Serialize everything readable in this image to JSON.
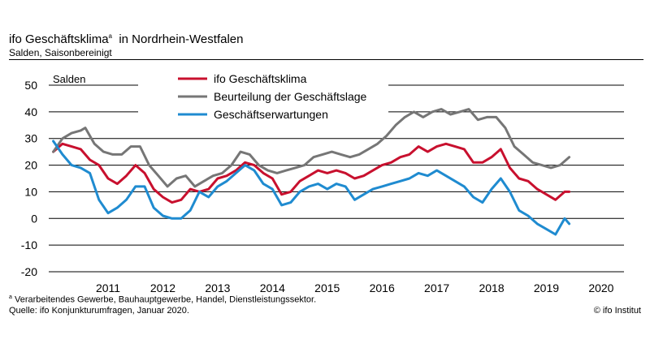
{
  "header": {
    "title": "ifo Geschäftsklima",
    "title_sup": "a",
    "title_suffix": "in Nordrhein-Westfalen",
    "subtitle": "Salden, Saisonbereinigt"
  },
  "footer": {
    "footnote_sup": "a",
    "footnote": "Verarbeitendes Gewerbe, Bauhauptgewerbe, Handel, Dienstleistungssektor.",
    "source": "Quelle: ifo Konjunkturumfragen, Januar 2020.",
    "copyright": "© ifo Institut"
  },
  "chart_data": {
    "type": "line",
    "ylabel": "Salden",
    "ylim": [
      -20,
      50
    ],
    "yticks": [
      -20,
      -10,
      0,
      10,
      20,
      30,
      40,
      50
    ],
    "xlim": [
      "2010-06",
      "2020-12"
    ],
    "xticks": [
      "2011",
      "2012",
      "2013",
      "2014",
      "2015",
      "2016",
      "2017",
      "2018",
      "2019",
      "2020"
    ],
    "grid": "horizontal",
    "legend_position": "top-center",
    "series": [
      {
        "name": "ifo Geschäftsklima",
        "color": "#c8102e",
        "points": [
          [
            "2010-07",
            25
          ],
          [
            "2010-09",
            28
          ],
          [
            "2010-11",
            27
          ],
          [
            "2011-01",
            26
          ],
          [
            "2011-03",
            22
          ],
          [
            "2011-05",
            20
          ],
          [
            "2011-07",
            15
          ],
          [
            "2011-09",
            13
          ],
          [
            "2011-11",
            16
          ],
          [
            "2012-01",
            20
          ],
          [
            "2012-03",
            17
          ],
          [
            "2012-05",
            11
          ],
          [
            "2012-07",
            8
          ],
          [
            "2012-09",
            6
          ],
          [
            "2012-11",
            7
          ],
          [
            "2013-01",
            11
          ],
          [
            "2013-03",
            10
          ],
          [
            "2013-05",
            11
          ],
          [
            "2013-07",
            15
          ],
          [
            "2013-09",
            16
          ],
          [
            "2013-11",
            18
          ],
          [
            "2014-01",
            21
          ],
          [
            "2014-03",
            20
          ],
          [
            "2014-05",
            17
          ],
          [
            "2014-07",
            15
          ],
          [
            "2014-09",
            9
          ],
          [
            "2014-11",
            10
          ],
          [
            "2015-01",
            14
          ],
          [
            "2015-03",
            16
          ],
          [
            "2015-05",
            18
          ],
          [
            "2015-07",
            17
          ],
          [
            "2015-09",
            18
          ],
          [
            "2015-11",
            17
          ],
          [
            "2016-01",
            15
          ],
          [
            "2016-03",
            16
          ],
          [
            "2016-05",
            18
          ],
          [
            "2016-07",
            20
          ],
          [
            "2016-09",
            21
          ],
          [
            "2016-11",
            23
          ],
          [
            "2017-01",
            24
          ],
          [
            "2017-03",
            27
          ],
          [
            "2017-05",
            25
          ],
          [
            "2017-07",
            27
          ],
          [
            "2017-09",
            28
          ],
          [
            "2017-11",
            27
          ],
          [
            "2018-01",
            26
          ],
          [
            "2018-03",
            21
          ],
          [
            "2018-05",
            21
          ],
          [
            "2018-07",
            23
          ],
          [
            "2018-09",
            26
          ],
          [
            "2018-11",
            19
          ],
          [
            "2019-01",
            15
          ],
          [
            "2019-03",
            14
          ],
          [
            "2019-05",
            11
          ],
          [
            "2019-07",
            9
          ],
          [
            "2019-09",
            7
          ],
          [
            "2019-11",
            10
          ],
          [
            "2019-12",
            10
          ]
        ]
      },
      {
        "name": "Beurteilung der Geschäftslage",
        "color": "#767676",
        "points": [
          [
            "2010-07",
            25
          ],
          [
            "2010-09",
            30
          ],
          [
            "2010-11",
            32
          ],
          [
            "2011-01",
            33
          ],
          [
            "2011-02",
            34
          ],
          [
            "2011-04",
            28
          ],
          [
            "2011-06",
            25
          ],
          [
            "2011-08",
            24
          ],
          [
            "2011-10",
            24
          ],
          [
            "2011-12",
            27
          ],
          [
            "2012-02",
            27
          ],
          [
            "2012-04",
            20
          ],
          [
            "2012-06",
            16
          ],
          [
            "2012-08",
            12
          ],
          [
            "2012-10",
            15
          ],
          [
            "2012-12",
            16
          ],
          [
            "2013-02",
            12
          ],
          [
            "2013-04",
            14
          ],
          [
            "2013-06",
            16
          ],
          [
            "2013-08",
            17
          ],
          [
            "2013-10",
            20
          ],
          [
            "2013-12",
            25
          ],
          [
            "2014-02",
            24
          ],
          [
            "2014-04",
            20
          ],
          [
            "2014-06",
            18
          ],
          [
            "2014-08",
            17
          ],
          [
            "2014-10",
            18
          ],
          [
            "2014-12",
            19
          ],
          [
            "2015-02",
            20
          ],
          [
            "2015-04",
            23
          ],
          [
            "2015-06",
            24
          ],
          [
            "2015-08",
            25
          ],
          [
            "2015-10",
            24
          ],
          [
            "2015-12",
            23
          ],
          [
            "2016-02",
            24
          ],
          [
            "2016-04",
            26
          ],
          [
            "2016-06",
            28
          ],
          [
            "2016-08",
            31
          ],
          [
            "2016-10",
            35
          ],
          [
            "2016-12",
            38
          ],
          [
            "2017-02",
            40
          ],
          [
            "2017-04",
            38
          ],
          [
            "2017-06",
            40
          ],
          [
            "2017-08",
            41
          ],
          [
            "2017-10",
            39
          ],
          [
            "2017-12",
            40
          ],
          [
            "2018-02",
            41
          ],
          [
            "2018-04",
            37
          ],
          [
            "2018-06",
            38
          ],
          [
            "2018-08",
            38
          ],
          [
            "2018-10",
            34
          ],
          [
            "2018-12",
            27
          ],
          [
            "2019-02",
            24
          ],
          [
            "2019-04",
            21
          ],
          [
            "2019-06",
            20
          ],
          [
            "2019-08",
            19
          ],
          [
            "2019-10",
            20
          ],
          [
            "2019-12",
            23
          ]
        ]
      },
      {
        "name": "Geschäftserwartungen",
        "color": "#1f8bd0",
        "points": [
          [
            "2010-07",
            29
          ],
          [
            "2010-09",
            24
          ],
          [
            "2010-11",
            20
          ],
          [
            "2011-01",
            19
          ],
          [
            "2011-03",
            17
          ],
          [
            "2011-05",
            7
          ],
          [
            "2011-07",
            2
          ],
          [
            "2011-09",
            4
          ],
          [
            "2011-11",
            7
          ],
          [
            "2012-01",
            12
          ],
          [
            "2012-03",
            12
          ],
          [
            "2012-05",
            4
          ],
          [
            "2012-07",
            1
          ],
          [
            "2012-09",
            0
          ],
          [
            "2012-11",
            0
          ],
          [
            "2013-01",
            3
          ],
          [
            "2013-03",
            10
          ],
          [
            "2013-05",
            8
          ],
          [
            "2013-07",
            12
          ],
          [
            "2013-09",
            14
          ],
          [
            "2013-11",
            17
          ],
          [
            "2014-01",
            20
          ],
          [
            "2014-03",
            18
          ],
          [
            "2014-05",
            13
          ],
          [
            "2014-07",
            11
          ],
          [
            "2014-09",
            5
          ],
          [
            "2014-11",
            6
          ],
          [
            "2015-01",
            10
          ],
          [
            "2015-03",
            12
          ],
          [
            "2015-05",
            13
          ],
          [
            "2015-07",
            11
          ],
          [
            "2015-09",
            13
          ],
          [
            "2015-11",
            12
          ],
          [
            "2016-01",
            7
          ],
          [
            "2016-03",
            9
          ],
          [
            "2016-05",
            11
          ],
          [
            "2016-07",
            12
          ],
          [
            "2016-09",
            13
          ],
          [
            "2016-11",
            14
          ],
          [
            "2017-01",
            15
          ],
          [
            "2017-03",
            17
          ],
          [
            "2017-05",
            16
          ],
          [
            "2017-07",
            18
          ],
          [
            "2017-09",
            16
          ],
          [
            "2017-11",
            14
          ],
          [
            "2018-01",
            12
          ],
          [
            "2018-03",
            8
          ],
          [
            "2018-05",
            6
          ],
          [
            "2018-07",
            11
          ],
          [
            "2018-09",
            15
          ],
          [
            "2018-11",
            10
          ],
          [
            "2019-01",
            3
          ],
          [
            "2019-03",
            1
          ],
          [
            "2019-05",
            -2
          ],
          [
            "2019-07",
            -4
          ],
          [
            "2019-09",
            -6
          ],
          [
            "2019-11",
            0
          ],
          [
            "2019-12",
            -2
          ]
        ]
      }
    ]
  }
}
